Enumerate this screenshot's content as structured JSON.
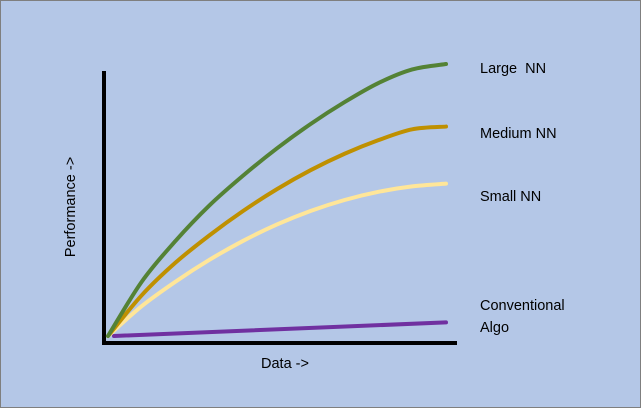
{
  "chart_data": {
    "type": "line",
    "title": "",
    "xlabel": "Data ->",
    "ylabel": "Performance ->",
    "grid": false,
    "legend": "inline labels at the right end of each curve",
    "x": [
      0,
      0.1,
      0.2,
      0.3,
      0.4,
      0.5,
      0.6,
      0.7,
      0.8,
      0.9,
      1.0
    ],
    "series": [
      {
        "name": "Large  NN",
        "color": "#548235",
        "values": [
          0.0,
          0.2,
          0.35,
          0.48,
          0.59,
          0.69,
          0.78,
          0.86,
          0.93,
          0.98,
          1.0
        ]
      },
      {
        "name": "Medium NN",
        "color": "#bf9000",
        "values": [
          0.0,
          0.15,
          0.27,
          0.37,
          0.46,
          0.54,
          0.61,
          0.67,
          0.72,
          0.76,
          0.77
        ]
      },
      {
        "name": "Small NN",
        "color": "#ffe699",
        "values": [
          0.0,
          0.11,
          0.2,
          0.28,
          0.35,
          0.41,
          0.46,
          0.5,
          0.53,
          0.55,
          0.56
        ]
      },
      {
        "name_lines": [
          "Conventional",
          "Algo"
        ],
        "color": "#7030a0",
        "values": [
          0.0,
          0.005,
          0.01,
          0.015,
          0.02,
          0.025,
          0.03,
          0.035,
          0.04,
          0.045,
          0.05
        ]
      }
    ]
  }
}
